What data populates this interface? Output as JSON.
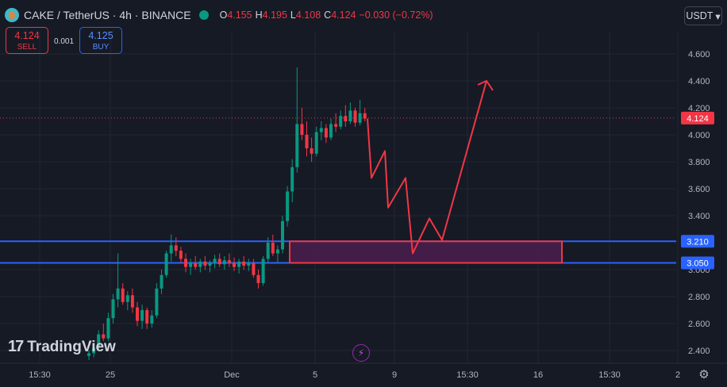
{
  "header": {
    "symbol_title": "CAKE / TetherUS · 4h · BINANCE",
    "ohlc": [
      {
        "k": "O",
        "v": "4.155"
      },
      {
        "k": "H",
        "v": "4.195"
      },
      {
        "k": "L",
        "v": "4.108"
      },
      {
        "k": "C",
        "v": "4.124"
      },
      {
        "k": "",
        "v": "−0.030 (−0.72%)"
      }
    ]
  },
  "trade": {
    "sell_price": "4.124",
    "sell_label": "SELL",
    "spread": "0.001",
    "buy_price": "4.125",
    "buy_label": "BUY"
  },
  "currency_button": "USDT",
  "branding": {
    "logo_text": "TradingView",
    "logo_mark": "17"
  },
  "icons": {
    "live": "live-dot-icon",
    "coin": "cake-coin-icon",
    "bolt": "lightning-icon",
    "settings": "gear-icon",
    "chevron": "chevron-down-icon"
  },
  "colors": {
    "background": "#161a25",
    "up": "#089981",
    "down": "#f23645",
    "level_line": "#2962ff",
    "zone_fill": "#4a1f4d",
    "zone_border": "#f23645",
    "projection": "#f23645",
    "grid": "#232632"
  },
  "chart_data": {
    "type": "candlestick",
    "y_axis": {
      "ticks": [
        2.4,
        2.6,
        2.8,
        3.0,
        3.4,
        3.6,
        3.8,
        4.0,
        4.2,
        4.4,
        4.6
      ],
      "tick_labels": [
        "2.400",
        "2.600",
        "2.800",
        "3.000",
        "3.400",
        "3.600",
        "3.800",
        "4.000",
        "4.200",
        "4.400",
        "4.600"
      ],
      "range": [
        2.3,
        4.8
      ]
    },
    "x_axis": {
      "tick_labels": [
        "15:30",
        "25",
        "Dec",
        "5",
        "9",
        "15:30",
        "16",
        "15:30",
        "2"
      ]
    },
    "current_price": {
      "value": 4.124,
      "label": "4.124"
    },
    "levels": [
      {
        "value": 3.21,
        "label": "3.210"
      },
      {
        "value": 3.05,
        "label": "3.050"
      }
    ],
    "zone": {
      "low": 3.05,
      "high": 3.21
    },
    "candles": [
      [
        2.36,
        2.4,
        2.33,
        2.38
      ],
      [
        2.38,
        2.44,
        2.35,
        2.42
      ],
      [
        2.42,
        2.55,
        2.4,
        2.52
      ],
      [
        2.52,
        2.6,
        2.47,
        2.49
      ],
      [
        2.49,
        2.68,
        2.47,
        2.64
      ],
      [
        2.64,
        2.82,
        2.6,
        2.78
      ],
      [
        2.78,
        3.12,
        2.72,
        2.86
      ],
      [
        2.86,
        2.9,
        2.74,
        2.76
      ],
      [
        2.76,
        2.84,
        2.7,
        2.81
      ],
      [
        2.81,
        2.86,
        2.68,
        2.72
      ],
      [
        2.72,
        2.76,
        2.58,
        2.62
      ],
      [
        2.62,
        2.74,
        2.56,
        2.7
      ],
      [
        2.7,
        2.72,
        2.56,
        2.6
      ],
      [
        2.6,
        2.7,
        2.57,
        2.66
      ],
      [
        2.66,
        2.9,
        2.64,
        2.86
      ],
      [
        2.86,
        3.0,
        2.82,
        2.96
      ],
      [
        2.96,
        3.14,
        2.94,
        3.12
      ],
      [
        3.12,
        3.26,
        3.06,
        3.18
      ],
      [
        3.18,
        3.24,
        3.1,
        3.14
      ],
      [
        3.14,
        3.17,
        3.05,
        3.08
      ],
      [
        3.08,
        3.12,
        2.98,
        3.02
      ],
      [
        3.02,
        3.08,
        2.96,
        3.05
      ],
      [
        3.05,
        3.1,
        3.0,
        3.02
      ],
      [
        3.02,
        3.08,
        2.98,
        3.06
      ],
      [
        3.06,
        3.1,
        3.0,
        3.03
      ],
      [
        3.03,
        3.07,
        2.98,
        3.05
      ],
      [
        3.05,
        3.11,
        3.01,
        3.08
      ],
      [
        3.08,
        3.12,
        3.02,
        3.04
      ],
      [
        3.04,
        3.1,
        3.0,
        3.07
      ],
      [
        3.07,
        3.12,
        3.02,
        3.05
      ],
      [
        3.05,
        3.09,
        2.99,
        3.02
      ],
      [
        3.02,
        3.08,
        2.97,
        3.06
      ],
      [
        3.06,
        3.1,
        3.0,
        3.03
      ],
      [
        3.03,
        3.08,
        2.99,
        3.05
      ],
      [
        3.05,
        3.08,
        2.94,
        2.96
      ],
      [
        2.96,
        3.0,
        2.86,
        2.9
      ],
      [
        2.9,
        3.1,
        2.88,
        3.08
      ],
      [
        3.08,
        3.24,
        3.05,
        3.2
      ],
      [
        3.2,
        3.26,
        3.1,
        3.12
      ],
      [
        3.12,
        3.18,
        3.05,
        3.15
      ],
      [
        3.15,
        3.4,
        3.12,
        3.36
      ],
      [
        3.36,
        3.62,
        3.32,
        3.58
      ],
      [
        3.58,
        3.82,
        3.5,
        3.76
      ],
      [
        3.76,
        4.5,
        3.72,
        4.08
      ],
      [
        4.08,
        4.2,
        3.96,
        4.0
      ],
      [
        4.0,
        4.1,
        3.84,
        3.9
      ],
      [
        3.9,
        3.98,
        3.8,
        3.86
      ],
      [
        3.86,
        4.06,
        3.84,
        4.02
      ],
      [
        4.02,
        4.1,
        3.96,
        4.05
      ],
      [
        4.05,
        4.08,
        3.94,
        3.98
      ],
      [
        3.98,
        4.12,
        3.96,
        4.08
      ],
      [
        4.08,
        4.16,
        4.02,
        4.06
      ],
      [
        4.06,
        4.18,
        4.04,
        4.14
      ],
      [
        4.14,
        4.22,
        4.06,
        4.1
      ],
      [
        4.1,
        4.24,
        4.08,
        4.18
      ],
      [
        4.18,
        4.2,
        4.06,
        4.09
      ],
      [
        4.09,
        4.26,
        4.07,
        4.16
      ],
      [
        4.16,
        4.2,
        4.1,
        4.12
      ]
    ],
    "projection_path": [
      [
        4.12,
        0
      ],
      [
        3.68,
        0
      ],
      [
        3.88,
        0
      ],
      [
        3.46,
        0
      ],
      [
        3.68,
        0
      ],
      [
        3.12,
        0
      ],
      [
        3.38,
        0
      ],
      [
        3.22,
        0
      ],
      [
        4.4,
        0
      ]
    ]
  }
}
